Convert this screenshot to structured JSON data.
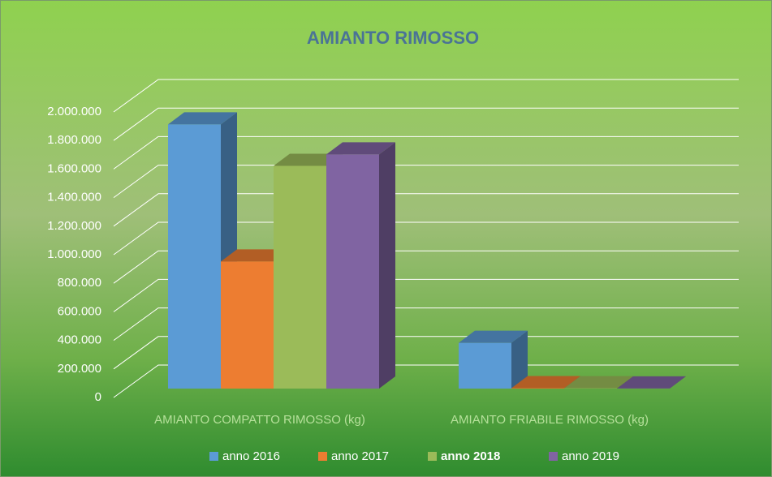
{
  "chart_data": {
    "type": "bar3d",
    "title": "AMIANTO RIMOSSO",
    "categories": [
      "AMIANTO COMPATTO RIMOSSO (kg)",
      "AMIANTO FRIABILE RIMOSSO (kg)"
    ],
    "series": [
      {
        "name": "anno 2016",
        "color": "#5b9bd5",
        "values": [
          1850000,
          320000
        ]
      },
      {
        "name": "anno 2017",
        "color": "#ed7d31",
        "values": [
          890000,
          3000
        ]
      },
      {
        "name": "anno 2018",
        "color": "#9bbb59",
        "values": [
          1560000,
          2000
        ]
      },
      {
        "name": "anno 2019",
        "color": "#8064a2",
        "values": [
          1640000,
          1000
        ]
      }
    ],
    "ylim": [
      0,
      2000000
    ],
    "yticks": [
      0,
      {
        "value": 200000,
        "label": "200.000"
      },
      {
        "value": 400000,
        "label": "400.000"
      },
      {
        "value": 600000,
        "label": "600.000"
      },
      {
        "value": 800000,
        "label": "800.000"
      },
      {
        "value": 1000000,
        "label": "1.000.000"
      },
      {
        "value": 1200000,
        "label": "1.200.000"
      },
      {
        "value": 1400000,
        "label": "1.400.000"
      },
      {
        "value": 1600000,
        "label": "1.600.000"
      },
      {
        "value": 1800000,
        "label": "1.800.000"
      },
      {
        "value": 2000000,
        "label": "2.000.000"
      }
    ],
    "grid": true,
    "legend": "bottom"
  }
}
